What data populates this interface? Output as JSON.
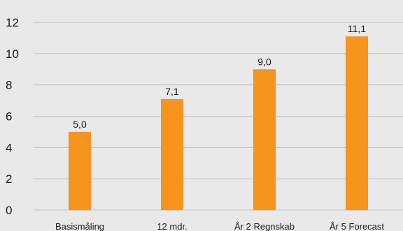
{
  "chart_data": {
    "type": "bar",
    "categories": [
      "Basismåling",
      "12 mdr.",
      "År 2 Regnskab",
      "År 5 Forecast"
    ],
    "values": [
      5.0,
      7.1,
      9.0,
      11.1
    ],
    "value_labels": [
      "5,0",
      "7,1",
      "9,0",
      "11,1"
    ],
    "ylim": [
      0,
      12
    ],
    "yticks": [
      0,
      2,
      4,
      6,
      8,
      10,
      12
    ],
    "ytick_labels": [
      "0",
      "2",
      "4",
      "6",
      "8",
      "10",
      "12"
    ],
    "grid": true,
    "colors": {
      "bar": "#f7941d",
      "background": "#e9e9ea",
      "grid": "#bfbfbf"
    }
  }
}
